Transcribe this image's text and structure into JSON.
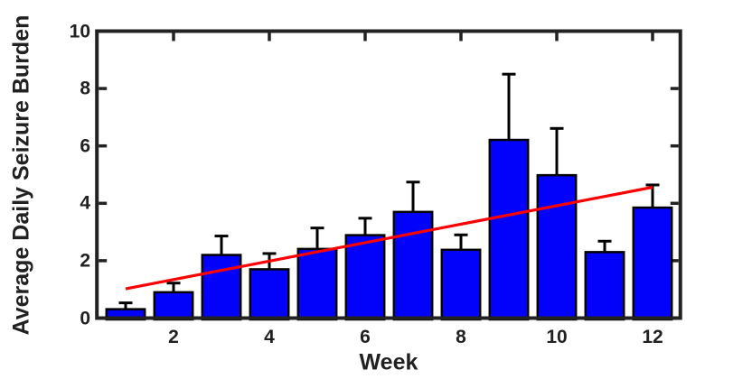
{
  "figure": {
    "background_color": "#FFFFFF",
    "axis_frame_color": "#222222",
    "text_color": "#212121"
  },
  "chart_data": {
    "type": "bar",
    "title": "",
    "xlabel": "Week",
    "ylabel": "Average Daily Seizure Burden",
    "categories": [
      1,
      2,
      3,
      4,
      5,
      6,
      7,
      8,
      9,
      10,
      11,
      12
    ],
    "values": [
      0.31,
      0.9,
      2.2,
      1.7,
      2.41,
      2.89,
      3.7,
      2.38,
      6.21,
      4.98,
      2.3,
      3.85
    ],
    "error_up": [
      0.22,
      0.32,
      0.66,
      0.55,
      0.73,
      0.59,
      1.04,
      0.52,
      2.29,
      1.63,
      0.38,
      0.79
    ],
    "bar_fill_color": "#0202FA",
    "bar_edge_color": "#000000",
    "error_bar_color": "#000000",
    "trend_line": {
      "color": "#FA0000",
      "x_start": 1.0,
      "y_start": 1.02,
      "x_end": 12.0,
      "y_end": 4.56
    },
    "xlim": [
      0.4,
      12.58
    ],
    "ylim": [
      0,
      10
    ],
    "x_ticks": [
      2,
      4,
      6,
      8,
      10,
      12
    ],
    "x_tick_labels": [
      "2",
      "4",
      "6",
      "8",
      "10",
      "12"
    ],
    "y_ticks": [
      0,
      2,
      4,
      6,
      8,
      10
    ],
    "y_tick_labels": [
      "0",
      "2",
      "4",
      "6",
      "8",
      "10"
    ],
    "grid": false,
    "legend": null
  }
}
